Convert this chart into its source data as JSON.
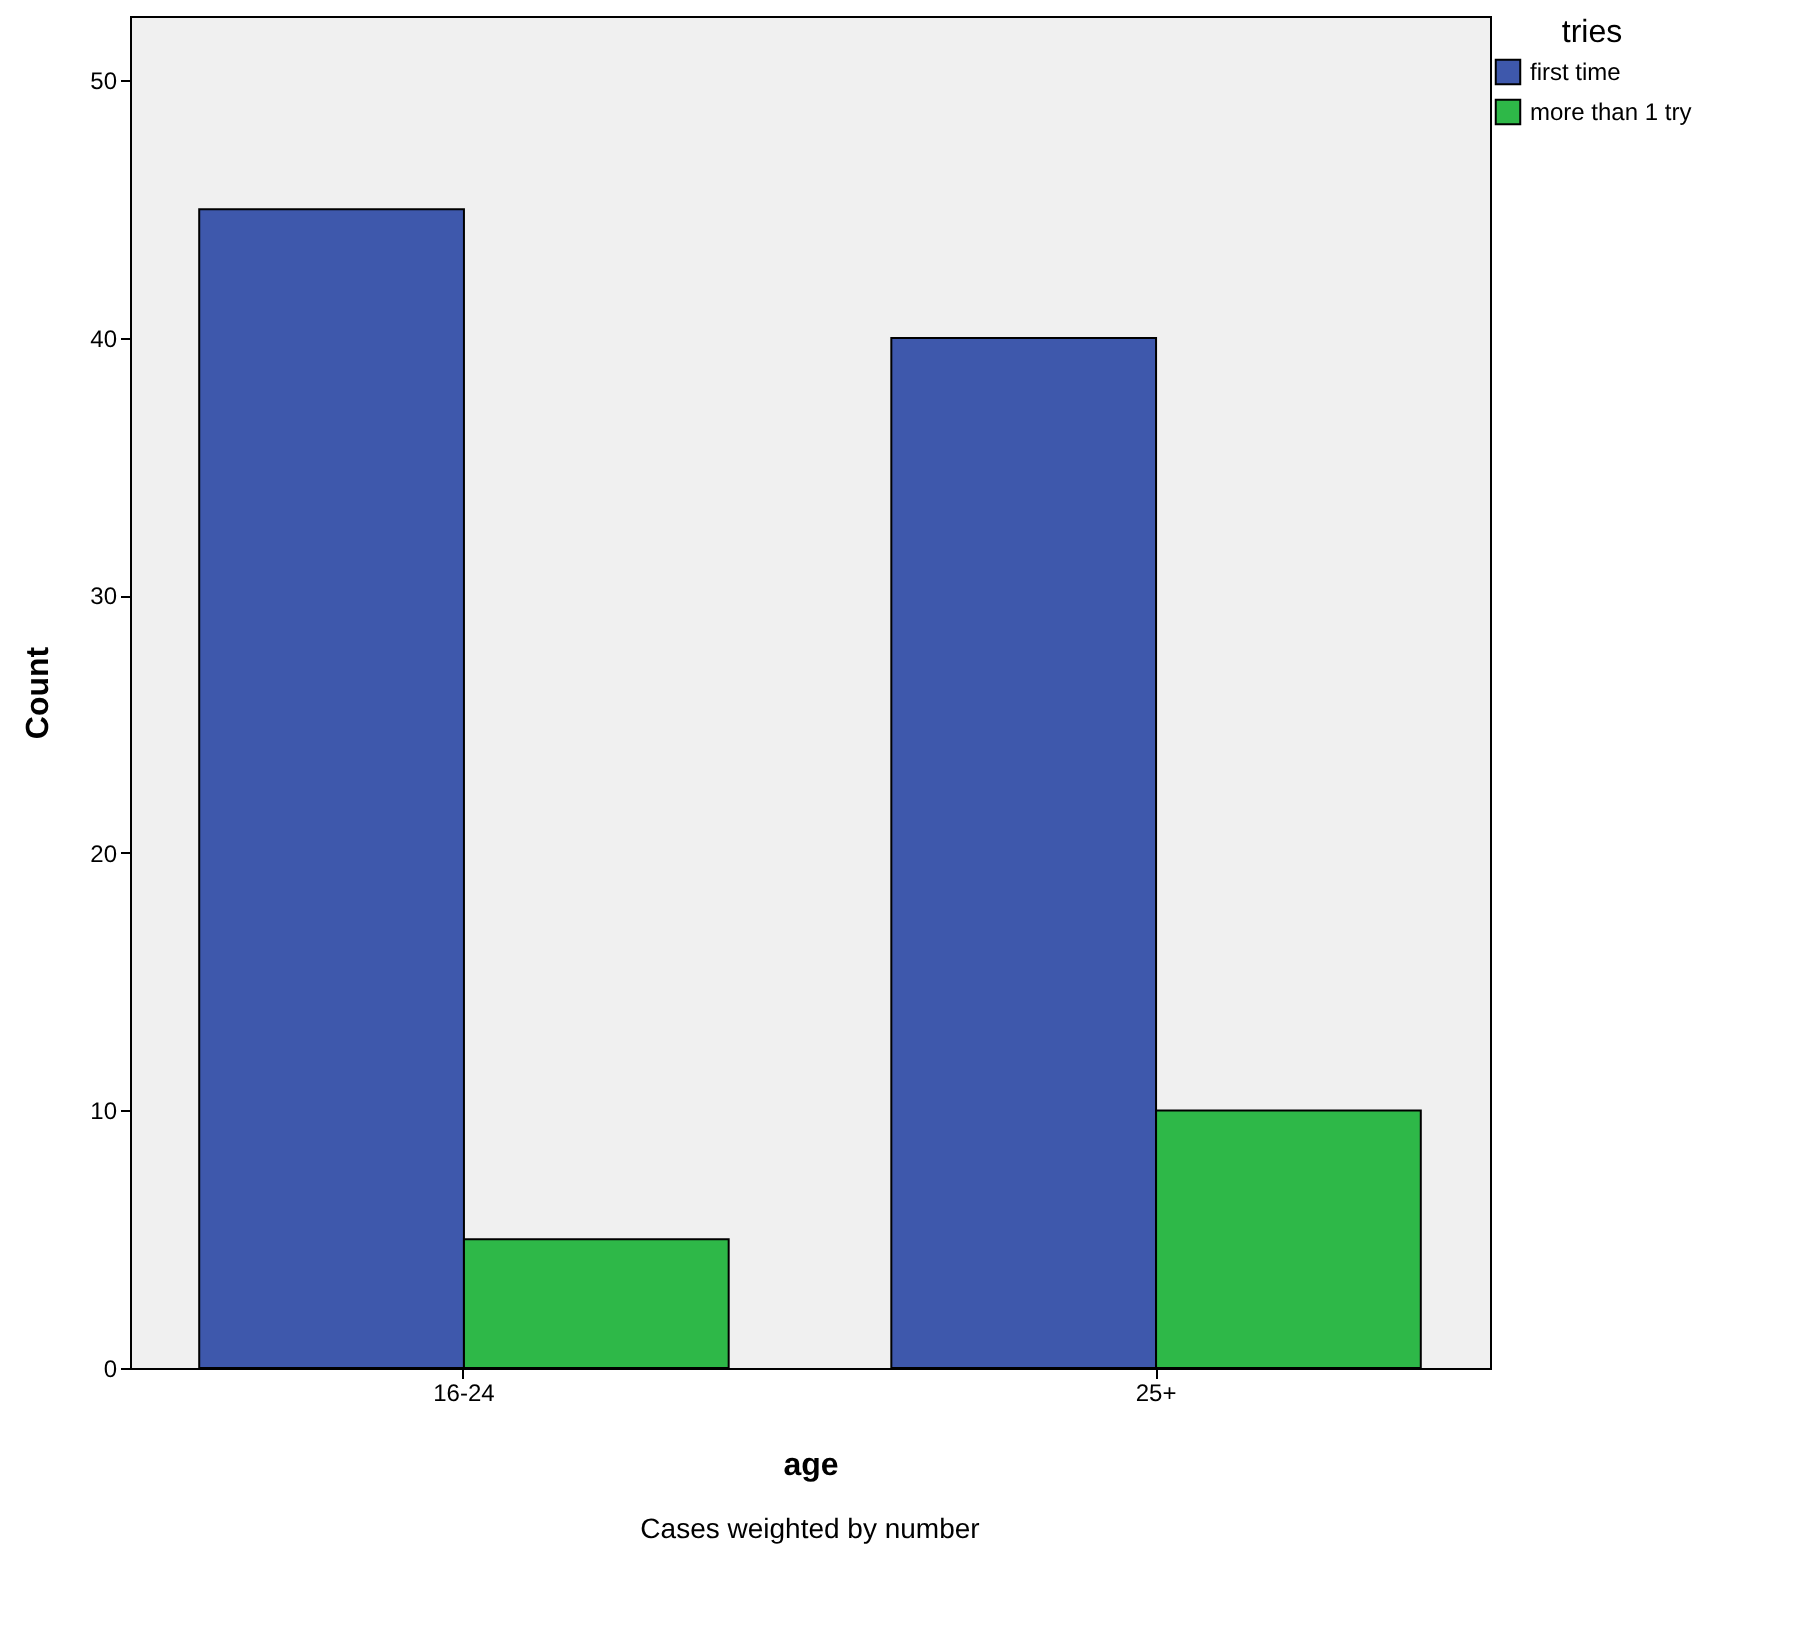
{
  "chart_data": {
    "type": "bar",
    "xlabel": "age",
    "ylabel": "Count",
    "legend_title": "tries",
    "categories": [
      "16-24",
      "25+"
    ],
    "series": [
      {
        "name": "first time",
        "color": "#3e58ac",
        "values": [
          45,
          40
        ]
      },
      {
        "name": "more than 1 try",
        "color": "#2eb848",
        "values": [
          5,
          10
        ]
      }
    ],
    "ylim": [
      0,
      52.5
    ],
    "yticks": [
      0,
      10,
      20,
      30,
      40,
      50
    ],
    "grid": false,
    "legend": "top right",
    "annotations": [
      "Cases weighted by number"
    ]
  }
}
